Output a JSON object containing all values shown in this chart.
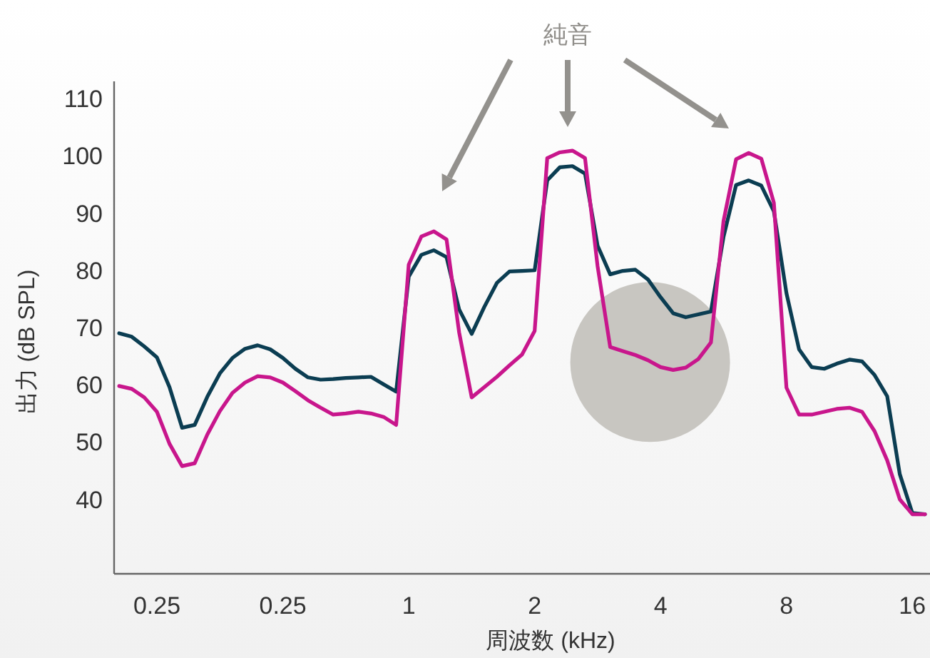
{
  "chart_data": {
    "type": "line",
    "xlabel": "周波数 (kHz)",
    "ylabel": "出力 (dB SPL)",
    "annotations": [
      "純音"
    ],
    "categories": [
      null,
      null,
      null,
      "0.25",
      null,
      null,
      null,
      null,
      null,
      null,
      null,
      null,
      null,
      "0.25",
      null,
      null,
      null,
      null,
      null,
      null,
      null,
      null,
      null,
      "1",
      null,
      null,
      null,
      null,
      null,
      null,
      null,
      null,
      null,
      "2",
      null,
      null,
      null,
      null,
      null,
      null,
      null,
      null,
      null,
      "4",
      null,
      null,
      null,
      null,
      null,
      null,
      null,
      null,
      null,
      "8",
      null,
      null,
      null,
      null,
      null,
      null,
      null,
      null,
      null,
      "16",
      null
    ],
    "ylim": [
      27,
      113
    ],
    "yticks": [
      40,
      50,
      60,
      70,
      80,
      90,
      100,
      110
    ],
    "grid": false,
    "marker": "none",
    "line_style": "solid",
    "series": [
      {
        "color": "#0b3d52",
        "values": [
          69.0,
          68.4,
          66.7,
          64.8,
          59.6,
          52.5,
          53.0,
          57.9,
          62.0,
          64.7,
          66.3,
          66.9,
          66.2,
          64.7,
          62.8,
          61.3,
          60.9,
          61.0,
          61.2,
          61.3,
          61.4,
          60.1,
          58.8,
          78.9,
          82.7,
          83.5,
          82.3,
          73.2,
          68.9,
          73.6,
          77.8,
          79.8,
          79.9,
          80.0,
          95.7,
          98.0,
          98.2,
          96.9,
          84.3,
          79.3,
          79.9,
          80.1,
          78.4,
          75.3,
          72.5,
          71.8,
          72.3,
          72.8,
          85.8,
          94.9,
          95.7,
          94.8,
          90.3,
          76.0,
          66.2,
          63.1,
          62.8,
          63.7,
          64.4,
          64.1,
          61.7,
          58.0,
          44.4,
          37.6,
          37.4
        ]
      },
      {
        "color": "#c8168c",
        "values": [
          59.8,
          59.3,
          57.8,
          55.3,
          49.7,
          45.8,
          46.3,
          51.3,
          55.4,
          58.6,
          60.4,
          61.5,
          61.3,
          60.4,
          58.9,
          57.3,
          56.0,
          54.8,
          55.0,
          55.3,
          55.0,
          54.4,
          53.0,
          81.0,
          85.9,
          86.8,
          85.4,
          69.2,
          57.8,
          59.6,
          61.4,
          63.4,
          65.3,
          69.4,
          99.6,
          100.6,
          100.9,
          99.6,
          80.7,
          66.6,
          65.9,
          65.2,
          64.3,
          63.1,
          62.6,
          63.0,
          64.5,
          67.4,
          88.6,
          99.4,
          100.5,
          99.5,
          91.8,
          59.5,
          54.8,
          54.8,
          55.3,
          55.8,
          56.0,
          55.3,
          51.9,
          46.8,
          40.0,
          37.4,
          37.4
        ]
      }
    ]
  }
}
